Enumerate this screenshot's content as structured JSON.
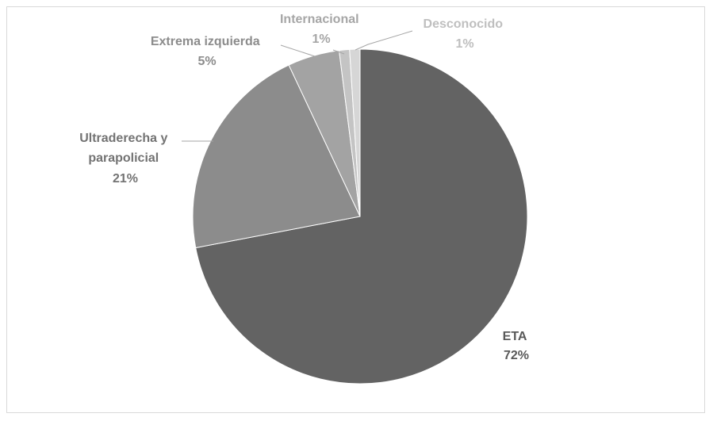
{
  "chart_data": {
    "type": "pie",
    "title": "",
    "legend": "none",
    "slices": [
      {
        "name": "ETA",
        "value": 72,
        "label": "72%",
        "color": "#636363",
        "label_color": "#595959"
      },
      {
        "name": "Ultraderecha y parapolicial",
        "value": 21,
        "label": "21%",
        "color": "#8c8c8c",
        "label_color": "#737373"
      },
      {
        "name": "Extrema izquierda",
        "value": 5,
        "label": "5%",
        "color": "#a3a3a3",
        "label_color": "#8c8c8c"
      },
      {
        "name": "Internacional",
        "value": 1,
        "label": "1%",
        "color": "#c4c4c4",
        "label_color": "#a6a6a6"
      },
      {
        "name": "Desconocido",
        "value": 1,
        "label": "1%",
        "color": "#d6d6d6",
        "label_color": "#bfbfbf"
      }
    ]
  }
}
